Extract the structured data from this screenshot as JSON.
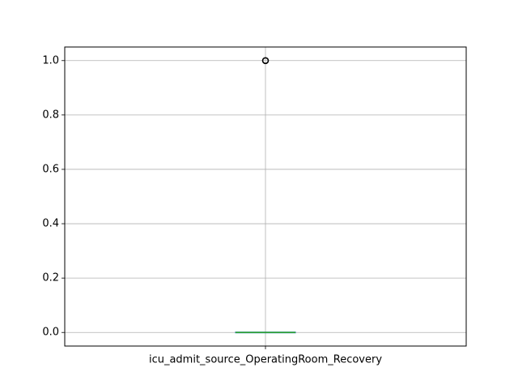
{
  "chart_data": {
    "type": "box",
    "title": "",
    "xlabel": "",
    "ylabel": "",
    "categories": [
      "icu_admit_source_OperatingRoom_Recovery"
    ],
    "ylim": [
      -0.05,
      1.05
    ],
    "yticks": [
      0.0,
      0.2,
      0.4,
      0.6,
      0.8,
      1.0
    ],
    "ytick_labels": [
      "0.0",
      "0.2",
      "0.4",
      "0.6",
      "0.8",
      "1.0"
    ],
    "grid": true,
    "boxes": [
      {
        "name": "icu_admit_source_OperatingRoom_Recovery",
        "q1": 0.0,
        "median": 0.0,
        "q3": 0.0,
        "whisker_low": 0.0,
        "whisker_high": 0.0,
        "outliers": [
          1.0
        ]
      }
    ],
    "colors": {
      "box": "#1f77b4",
      "median": "#2ca02c",
      "whisker": "#000000",
      "grid": "#b0b0b0",
      "outlier_edge": "#000000"
    }
  }
}
